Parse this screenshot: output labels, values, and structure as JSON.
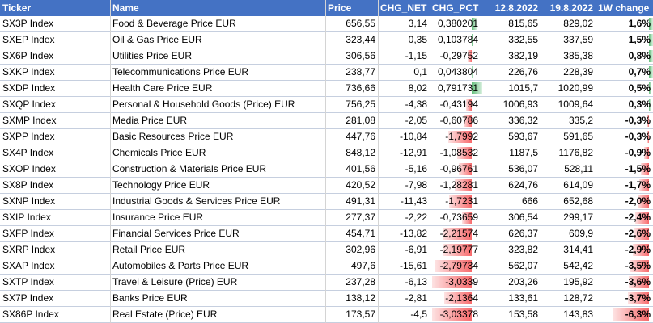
{
  "headers": {
    "ticker": "Ticker",
    "name": "Name",
    "price": "Price",
    "chg_net": "CHG_NET",
    "chg_pct": "CHG_PCT",
    "date1": "12.8.2022",
    "date2": "19.8.2022",
    "change": "1W change"
  },
  "colors": {
    "header_bg": "#4472c4",
    "positive_bar": "#63be7b",
    "negative_bar": "#f8696b"
  },
  "rows": [
    {
      "ticker": "SX3P Index",
      "name": "Food & Beverage Price EUR",
      "price": "656,55",
      "chg_net": "3,14",
      "chg_pct": "0,380201",
      "p1": "815,65",
      "p2": "829,02",
      "w": "1,6%",
      "pct": 0.380201,
      "wv": 1.6
    },
    {
      "ticker": "SXEP Index",
      "name": "Oil & Gas Price EUR",
      "price": "323,44",
      "chg_net": "0,35",
      "chg_pct": "0,103784",
      "p1": "332,55",
      "p2": "337,59",
      "w": "1,5%",
      "pct": 0.103784,
      "wv": 1.5
    },
    {
      "ticker": "SX6P Index",
      "name": "Utilities Price EUR",
      "price": "306,56",
      "chg_net": "-1,15",
      "chg_pct": "-0,29752",
      "p1": "382,19",
      "p2": "385,38",
      "w": "0,8%",
      "pct": -0.29752,
      "wv": 0.8
    },
    {
      "ticker": "SXKP Index",
      "name": "Telecommunications Price EUR",
      "price": "238,77",
      "chg_net": "0,1",
      "chg_pct": "0,043804",
      "p1": "226,76",
      "p2": "228,39",
      "w": "0,7%",
      "pct": 0.043804,
      "wv": 0.7
    },
    {
      "ticker": "SXDP Index",
      "name": "Health Care Price EUR",
      "price": "736,66",
      "chg_net": "8,02",
      "chg_pct": "0,791731",
      "p1": "1015,7",
      "p2": "1020,99",
      "w": "0,5%",
      "pct": 0.791731,
      "wv": 0.5
    },
    {
      "ticker": "SXQP Index",
      "name": "Personal & Household Goods (Price) EUR",
      "price": "756,25",
      "chg_net": "-4,38",
      "chg_pct": "-0,43194",
      "p1": "1006,93",
      "p2": "1009,64",
      "w": "0,3%",
      "pct": -0.43194,
      "wv": 0.3
    },
    {
      "ticker": "SXMP Index",
      "name": "Media Price EUR",
      "price": "281,08",
      "chg_net": "-2,05",
      "chg_pct": "-0,60786",
      "p1": "336,32",
      "p2": "335,2",
      "w": "-0,3%",
      "pct": -0.60786,
      "wv": -0.3
    },
    {
      "ticker": "SXPP Index",
      "name": "Basic Resources Price EUR",
      "price": "447,76",
      "chg_net": "-10,84",
      "chg_pct": "-1,7992",
      "p1": "593,67",
      "p2": "591,65",
      "w": "-0,3%",
      "pct": -1.7992,
      "wv": -0.3
    },
    {
      "ticker": "SX4P Index",
      "name": "Chemicals Price EUR",
      "price": "848,12",
      "chg_net": "-12,91",
      "chg_pct": "-1,08532",
      "p1": "1187,5",
      "p2": "1176,82",
      "w": "-0,9%",
      "pct": -1.08532,
      "wv": -0.9
    },
    {
      "ticker": "SXOP Index",
      "name": "Construction & Materials Price EUR",
      "price": "401,56",
      "chg_net": "-5,16",
      "chg_pct": "-0,96761",
      "p1": "536,07",
      "p2": "528,11",
      "w": "-1,5%",
      "pct": -0.96761,
      "wv": -1.5
    },
    {
      "ticker": "SX8P Index",
      "name": "Technology Price EUR",
      "price": "420,52",
      "chg_net": "-7,98",
      "chg_pct": "-1,28281",
      "p1": "624,76",
      "p2": "614,09",
      "w": "-1,7%",
      "pct": -1.28281,
      "wv": -1.7
    },
    {
      "ticker": "SXNP Index",
      "name": "Industrial Goods & Services Price EUR",
      "price": "491,31",
      "chg_net": "-11,43",
      "chg_pct": "-1,7231",
      "p1": "666",
      "p2": "652,68",
      "w": "-2,0%",
      "pct": -1.7231,
      "wv": -2.0
    },
    {
      "ticker": "SXIP Index",
      "name": "Insurance Price EUR",
      "price": "277,37",
      "chg_net": "-2,22",
      "chg_pct": "-0,73659",
      "p1": "306,54",
      "p2": "299,17",
      "w": "-2,4%",
      "pct": -0.73659,
      "wv": -2.4
    },
    {
      "ticker": "SXFP Index",
      "name": "Financial Services Price EUR",
      "price": "454,71",
      "chg_net": "-13,82",
      "chg_pct": "-2,21574",
      "p1": "626,37",
      "p2": "609,9",
      "w": "-2,6%",
      "pct": -2.21574,
      "wv": -2.6
    },
    {
      "ticker": "SXRP Index",
      "name": "Retail Price EUR",
      "price": "302,96",
      "chg_net": "-6,91",
      "chg_pct": "-2,19777",
      "p1": "323,82",
      "p2": "314,41",
      "w": "-2,9%",
      "pct": -2.19777,
      "wv": -2.9
    },
    {
      "ticker": "SXAP Index",
      "name": "Automobiles & Parts Price EUR",
      "price": "497,6",
      "chg_net": "-15,61",
      "chg_pct": "-2,79734",
      "p1": "562,07",
      "p2": "542,42",
      "w": "-3,5%",
      "pct": -2.79734,
      "wv": -3.5
    },
    {
      "ticker": "SXTP Index",
      "name": "Travel & Leisure (Price) EUR",
      "price": "237,28",
      "chg_net": "-6,13",
      "chg_pct": "-3,0339",
      "p1": "203,26",
      "p2": "195,92",
      "w": "-3,6%",
      "pct": -3.0339,
      "wv": -3.6
    },
    {
      "ticker": "SX7P Index",
      "name": "Banks Price EUR",
      "price": "138,12",
      "chg_net": "-2,81",
      "chg_pct": "-2,1364",
      "p1": "133,61",
      "p2": "128,72",
      "w": "-3,7%",
      "pct": -2.1364,
      "wv": -3.7
    },
    {
      "ticker": "SX86P Index",
      "name": "Real Estate (Price) EUR",
      "price": "173,57",
      "chg_net": "-4,5",
      "chg_pct": "-3,03378",
      "p1": "153,58",
      "p2": "143,83",
      "w": "-6,3%",
      "pct": -3.03378,
      "wv": -6.3
    }
  ]
}
